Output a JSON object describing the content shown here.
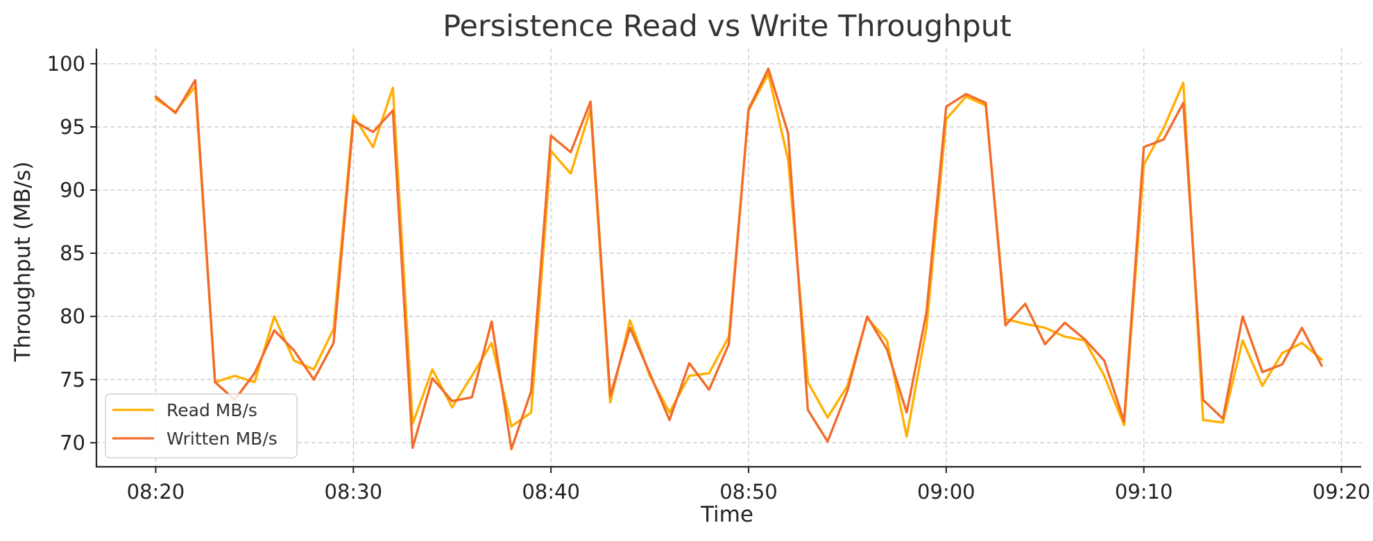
{
  "colors": {
    "read": "#FFAF00",
    "written": "#F26B2A"
  },
  "chart_data": {
    "type": "line",
    "title": "Persistence Read vs Write Throughput",
    "xlabel": "Time",
    "ylabel": "Throughput (MB/s)",
    "x_start": "08:20",
    "x_step_minutes": 1,
    "xlim": [
      "08:17",
      "09:21"
    ],
    "ylim": [
      68.1,
      101.2
    ],
    "x_ticks": [
      "08:20",
      "08:30",
      "08:40",
      "08:50",
      "09:00",
      "09:10",
      "09:20"
    ],
    "y_ticks": [
      70,
      75,
      80,
      85,
      90,
      95,
      100
    ],
    "grid": true,
    "legend_position": "lower-left",
    "series": [
      {
        "name": "Read MB/s",
        "color": "#FFAF00",
        "values": [
          97.2,
          96.2,
          98.2,
          74.8,
          75.3,
          74.8,
          80.0,
          76.5,
          75.8,
          79.0,
          95.9,
          93.4,
          98.1,
          71.5,
          75.8,
          72.8,
          75.3,
          77.9,
          71.3,
          72.4,
          93.1,
          91.3,
          96.4,
          73.2,
          79.7,
          75.3,
          72.4,
          75.3,
          75.5,
          78.4,
          96.3,
          99.2,
          92.4,
          74.8,
          72.0,
          74.5,
          79.9,
          78.1,
          70.5,
          79.1,
          95.6,
          97.4,
          96.7,
          79.8,
          79.4,
          79.1,
          78.4,
          78.1,
          75.3,
          71.4,
          92.0,
          94.9,
          98.5,
          71.8,
          71.6,
          78.1,
          74.5,
          77.1,
          77.9,
          76.6
        ]
      },
      {
        "name": "Written MB/s",
        "color": "#F26B2A",
        "values": [
          97.4,
          96.1,
          98.7,
          74.8,
          73.4,
          75.5,
          78.9,
          77.3,
          75.0,
          77.9,
          95.5,
          94.6,
          96.3,
          69.6,
          75.1,
          73.3,
          73.6,
          79.6,
          69.5,
          74.1,
          94.3,
          93.0,
          97.0,
          73.7,
          79.1,
          75.5,
          71.8,
          76.3,
          74.2,
          77.8,
          96.4,
          99.6,
          94.5,
          72.6,
          70.1,
          74.1,
          80.0,
          77.4,
          72.4,
          80.3,
          96.6,
          97.6,
          96.9,
          79.3,
          81.0,
          77.8,
          79.5,
          78.2,
          76.5,
          71.7,
          93.4,
          94.0,
          96.9,
          73.4,
          71.9,
          80.0,
          75.6,
          76.2,
          79.1,
          76.1
        ]
      }
    ]
  }
}
